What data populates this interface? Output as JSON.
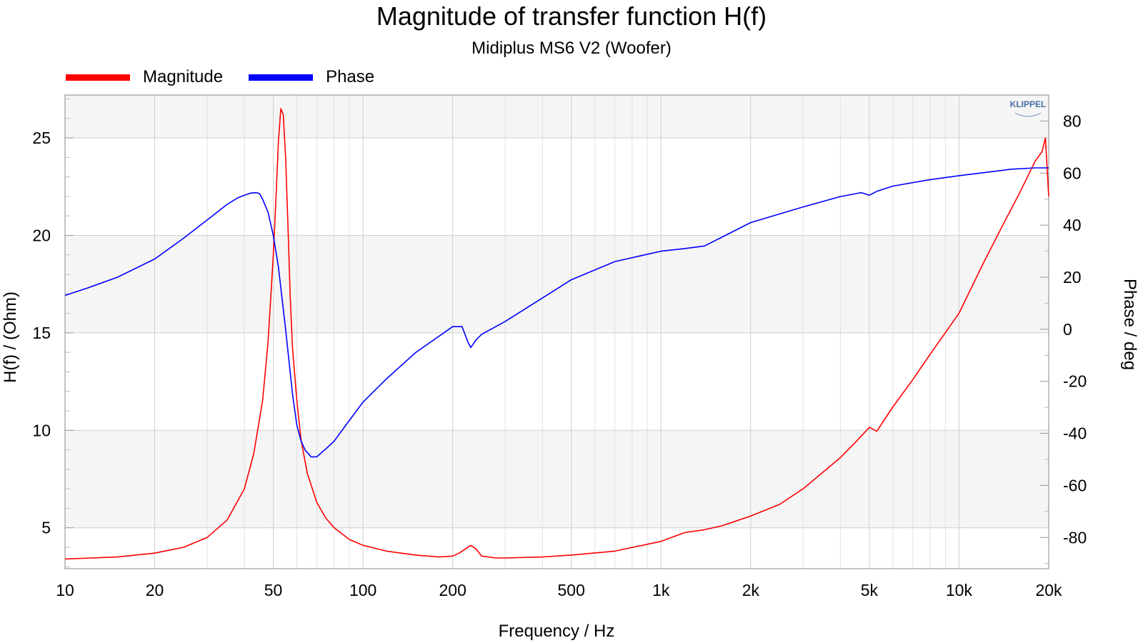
{
  "chart_data": {
    "type": "line",
    "title": "Magnitude of transfer function H(f)",
    "subtitle": "Midiplus MS6 V2 (Woofer)",
    "xlabel": "Frequency / Hz",
    "ylabel_left": "H(f) / (Ohm)",
    "ylabel_right": "Phase / deg",
    "xscale": "log",
    "xlim": [
      10,
      20000
    ],
    "ylim_left": [
      2.9,
      27.2
    ],
    "ylim_right": [
      -92,
      90
    ],
    "x_ticks": [
      {
        "value": 10,
        "label": "10"
      },
      {
        "value": 20,
        "label": "20"
      },
      {
        "value": 50,
        "label": "50"
      },
      {
        "value": 100,
        "label": "100"
      },
      {
        "value": 200,
        "label": "200"
      },
      {
        "value": 500,
        "label": "500"
      },
      {
        "value": 1000,
        "label": "1k"
      },
      {
        "value": 2000,
        "label": "2k"
      },
      {
        "value": 5000,
        "label": "5k"
      },
      {
        "value": 10000,
        "label": "10k"
      },
      {
        "value": 20000,
        "label": "20k"
      }
    ],
    "y_ticks_left": [
      5,
      10,
      15,
      20,
      25
    ],
    "y_ticks_right": [
      -80,
      -60,
      -40,
      -20,
      0,
      20,
      40,
      60,
      80
    ],
    "grid": true,
    "legend_position": "top-left",
    "series": [
      {
        "name": "Magnitude",
        "axis": "left",
        "color": "#ff0000",
        "x": [
          10,
          15,
          20,
          25,
          30,
          35,
          40,
          43,
          46,
          48,
          50,
          51,
          52,
          53,
          54,
          55,
          56,
          57,
          58,
          60,
          62,
          65,
          70,
          75,
          80,
          90,
          100,
          120,
          150,
          180,
          200,
          210,
          220,
          230,
          240,
          250,
          280,
          300,
          400,
          500,
          700,
          1000,
          1200,
          1400,
          1600,
          2000,
          2500,
          3000,
          4000,
          4500,
          5000,
          5300,
          6000,
          7000,
          8000,
          10000,
          12000,
          14000,
          16000,
          18000,
          19000,
          19500,
          20000
        ],
        "values": [
          3.4,
          3.5,
          3.7,
          4.0,
          4.5,
          5.4,
          7.0,
          8.8,
          11.5,
          14.5,
          19.0,
          21.8,
          24.8,
          26.5,
          26.2,
          24.0,
          20.5,
          16.8,
          14.2,
          11.5,
          9.5,
          7.8,
          6.3,
          5.5,
          5.0,
          4.4,
          4.1,
          3.8,
          3.6,
          3.5,
          3.55,
          3.7,
          3.9,
          4.1,
          3.9,
          3.55,
          3.45,
          3.45,
          3.5,
          3.6,
          3.8,
          4.3,
          4.75,
          4.9,
          5.1,
          5.6,
          6.2,
          7.0,
          8.6,
          9.4,
          10.15,
          9.95,
          11.2,
          12.6,
          13.9,
          16.0,
          18.5,
          20.5,
          22.2,
          23.8,
          24.3,
          25.0,
          22.0
        ]
      },
      {
        "name": "Phase",
        "axis": "right",
        "color": "#0000ff",
        "x": [
          10,
          12,
          15,
          20,
          25,
          30,
          35,
          38,
          40,
          42,
          44,
          45,
          46,
          48,
          50,
          52,
          55,
          58,
          60,
          62,
          64,
          67,
          70,
          75,
          80,
          90,
          100,
          120,
          150,
          200,
          215,
          225,
          230,
          240,
          250,
          300,
          400,
          500,
          700,
          1000,
          1200,
          1400,
          2000,
          3000,
          4000,
          4700,
          5000,
          5300,
          6000,
          8000,
          10000,
          15000,
          18000,
          20000
        ],
        "values": [
          13,
          16,
          20,
          27,
          35,
          42,
          48,
          50.5,
          51.5,
          52.3,
          52.5,
          52,
          50,
          45,
          36,
          24,
          0,
          -25,
          -37,
          -43,
          -46.5,
          -49,
          -49,
          -46,
          -43,
          -35,
          -28,
          -19,
          -9,
          1,
          1,
          -5,
          -7,
          -4,
          -2,
          3,
          12,
          19,
          26,
          30,
          31,
          32,
          41,
          47,
          51,
          52.5,
          51.5,
          53,
          55,
          57.5,
          59,
          61.5,
          62,
          62
        ]
      }
    ]
  },
  "logo_text": "KLIPPEL"
}
